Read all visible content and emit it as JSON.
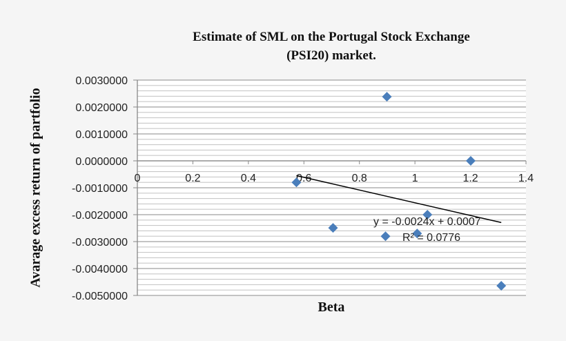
{
  "chart_data": {
    "type": "scatter",
    "title": "Estimate of SML  on  the Portugal Stock Exchange (PSI20) market.",
    "title_lines": [
      "Estimate of SML  on  the Portugal Stock Exchange",
      "(PSI20) market."
    ],
    "xlabel": "Beta",
    "ylabel": "Avarage excess return of partfolio",
    "xlim": [
      0,
      1.4
    ],
    "ylim": [
      -0.005,
      0.003
    ],
    "x_ticks": [
      "0",
      "0.2",
      "0.4",
      "0.6",
      "0.8",
      "1",
      "1.2",
      "1.4"
    ],
    "y_ticks": [
      "0.0030000",
      "0.0020000",
      "0.0010000",
      "0.0000000",
      "-0.0010000",
      "-0.0020000",
      "-0.0030000",
      "-0.0040000",
      "-0.0050000"
    ],
    "grid": {
      "major_y": 0.001,
      "minor_y": 0.0002
    },
    "series": [
      {
        "marker": "diamond",
        "color": "#4a7ebb",
        "points": [
          {
            "x": 0.573,
            "y": -0.0008
          },
          {
            "x": 0.705,
            "y": -0.00249
          },
          {
            "x": 0.894,
            "y": -0.0028
          },
          {
            "x": 0.899,
            "y": 0.00238
          },
          {
            "x": 1.008,
            "y": -0.0027
          },
          {
            "x": 1.045,
            "y": -0.002
          },
          {
            "x": 1.201,
            "y": 0.0
          },
          {
            "x": 1.311,
            "y": -0.00464
          }
        ]
      }
    ],
    "trendline": {
      "type": "linear",
      "slope": -0.0024,
      "intercept": 0.0007,
      "x_range": [
        0.573,
        1.311
      ],
      "color": "#000000",
      "equation": "y = -0.0024x + 0.0007",
      "r_squared": "R² = 0.0776"
    }
  }
}
